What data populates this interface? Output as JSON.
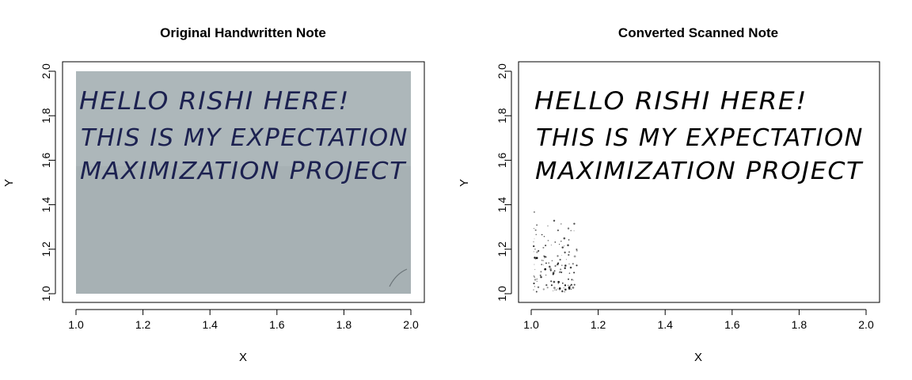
{
  "chart_data": [
    {
      "type": "image",
      "title": "Original Handwritten Note",
      "xlabel": "X",
      "ylabel": "Y",
      "xlim": [
        1.0,
        2.0
      ],
      "ylim": [
        1.0,
        2.0
      ],
      "xticks": [
        "1.0",
        "1.2",
        "1.4",
        "1.6",
        "1.8",
        "2.0"
      ],
      "yticks": [
        "1.0",
        "1.2",
        "1.4",
        "1.6",
        "1.8",
        "2.0"
      ],
      "image_text": [
        "HELLO RISHI HERE!",
        "THIS IS MY EXPECTATION",
        "MAXIMIZATION PROJECT"
      ],
      "image_background": "#a7b1b4",
      "ink_color": "#1c2150"
    },
    {
      "type": "image",
      "title": "Converted Scanned Note",
      "xlabel": "X",
      "ylabel": "Y",
      "xlim": [
        1.0,
        2.0
      ],
      "ylim": [
        1.0,
        2.0
      ],
      "xticks": [
        "1.0",
        "1.2",
        "1.4",
        "1.6",
        "1.8",
        "2.0"
      ],
      "yticks": [
        "1.0",
        "1.2",
        "1.4",
        "1.6",
        "1.8",
        "2.0"
      ],
      "image_text": [
        "HELLO RISHI HERE!",
        "THIS IS MY EXPECTATION",
        "MAXIMIZATION PROJECT"
      ],
      "image_background": "#ffffff",
      "ink_color": "#000000"
    }
  ]
}
